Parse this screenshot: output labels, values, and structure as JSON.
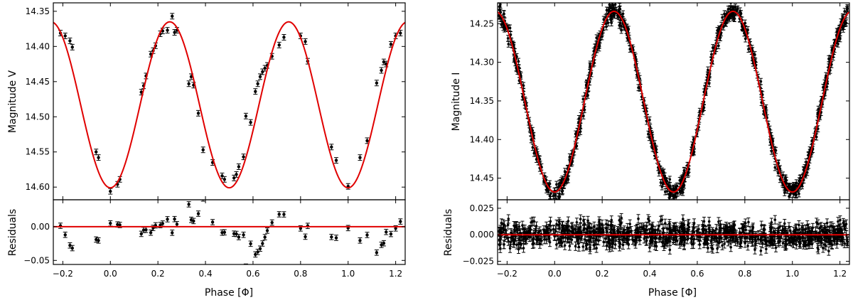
{
  "chart_data": [
    {
      "type": "scatter",
      "panel": "V",
      "xlabel": "Phase [Φ]",
      "ylabel": "Magnitude V",
      "residual_ylabel": "Residuals",
      "xlim": [
        -0.24,
        1.24
      ],
      "ylim": [
        14.618,
        14.338
      ],
      "y_inverted": true,
      "xticks": [
        -0.2,
        0.0,
        0.2,
        0.4,
        0.6,
        0.8,
        1.0,
        1.2
      ],
      "xtick_labels": [
        "−0.2",
        "0.0",
        "0.2",
        "0.4",
        "0.6",
        "0.8",
        "1.0",
        "1.2"
      ],
      "yticks": [
        14.35,
        14.4,
        14.45,
        14.5,
        14.55,
        14.6
      ],
      "ytick_labels": [
        "14.35",
        "14.40",
        "14.45",
        "14.50",
        "14.55",
        "14.60"
      ],
      "res_ylim": [
        -0.056,
        0.04
      ],
      "res_yticks": [
        -0.05,
        0.0
      ],
      "res_ytick_labels": [
        "−0.05",
        "0.00"
      ],
      "model": {
        "mean": 14.483,
        "amplitude": 0.118,
        "minimum_phase": 0.0,
        "period_phase": 0.5
      },
      "data_error": 0.004,
      "points": [
        [
          -0.21,
          14.381
        ],
        [
          -0.19,
          14.385
        ],
        [
          -0.17,
          14.392
        ],
        [
          -0.16,
          14.401
        ],
        [
          -0.06,
          14.55
        ],
        [
          -0.05,
          14.558
        ],
        [
          0.0,
          14.606
        ],
        [
          0.03,
          14.596
        ],
        [
          0.04,
          14.589
        ],
        [
          0.13,
          14.465
        ],
        [
          0.14,
          14.456
        ],
        [
          0.15,
          14.442
        ],
        [
          0.17,
          14.411
        ],
        [
          0.18,
          14.406
        ],
        [
          0.19,
          14.399
        ],
        [
          0.21,
          14.382
        ],
        [
          0.22,
          14.378
        ],
        [
          0.24,
          14.377
        ],
        [
          0.26,
          14.357
        ],
        [
          0.27,
          14.38
        ],
        [
          0.28,
          14.377
        ],
        [
          0.33,
          14.453
        ],
        [
          0.34,
          14.443
        ],
        [
          0.35,
          14.455
        ],
        [
          0.37,
          14.495
        ],
        [
          0.39,
          14.547
        ],
        [
          0.43,
          14.565
        ],
        [
          0.47,
          14.584
        ],
        [
          0.48,
          14.589
        ],
        [
          0.52,
          14.587
        ],
        [
          0.53,
          14.582
        ],
        [
          0.54,
          14.571
        ],
        [
          0.56,
          14.557
        ],
        [
          0.57,
          14.499
        ],
        [
          0.59,
          14.508
        ],
        [
          0.61,
          14.464
        ],
        [
          0.62,
          14.453
        ],
        [
          0.63,
          14.443
        ],
        [
          0.64,
          14.436
        ],
        [
          0.65,
          14.431
        ],
        [
          0.66,
          14.427
        ],
        [
          0.68,
          14.414
        ],
        [
          0.71,
          14.398
        ],
        [
          0.73,
          14.387
        ],
        [
          0.8,
          14.385
        ],
        [
          0.82,
          14.393
        ],
        [
          0.83,
          14.421
        ],
        [
          0.93,
          14.543
        ],
        [
          0.95,
          14.562
        ],
        [
          1.0,
          14.599
        ],
        [
          1.05,
          14.558
        ],
        [
          1.08,
          14.534
        ],
        [
          1.12,
          14.452
        ],
        [
          1.14,
          14.434
        ],
        [
          1.15,
          14.422
        ],
        [
          1.16,
          14.425
        ],
        [
          1.18,
          14.397
        ],
        [
          1.2,
          14.385
        ],
        [
          1.22,
          14.381
        ]
      ]
    },
    {
      "type": "scatter",
      "panel": "I",
      "xlabel": "Phase [Φ]",
      "ylabel": "Magnitude I",
      "residual_ylabel": "Residuals",
      "xlim": [
        -0.24,
        1.24
      ],
      "ylim": [
        14.478,
        14.223
      ],
      "y_inverted": true,
      "xticks": [
        -0.2,
        0.0,
        0.2,
        0.4,
        0.6,
        0.8,
        1.0,
        1.2
      ],
      "xtick_labels": [
        "−0.2",
        "0.0",
        "0.2",
        "0.4",
        "0.6",
        "0.8",
        "1.0",
        "1.2"
      ],
      "yticks": [
        14.25,
        14.3,
        14.35,
        14.4,
        14.45
      ],
      "ytick_labels": [
        "14.25",
        "14.30",
        "14.35",
        "14.40",
        "14.45"
      ],
      "res_ylim": [
        -0.028,
        0.033
      ],
      "res_yticks": [
        -0.025,
        0.0,
        0.025
      ],
      "res_ytick_labels": [
        "−0.025",
        "0.000",
        "0.025"
      ],
      "model": {
        "mean": 14.351,
        "amplitude": 0.117,
        "minimum_phase": 0.0,
        "period_phase": 0.5
      },
      "data_error": 0.004,
      "n_points": 900,
      "residual_scatter": 0.006
    }
  ]
}
